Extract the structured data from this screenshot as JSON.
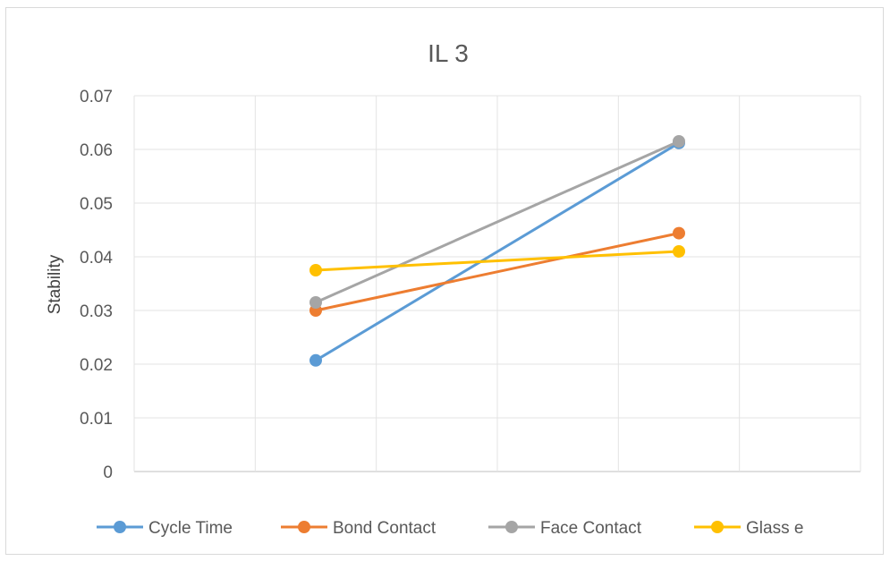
{
  "chart_data": {
    "type": "line",
    "title": "IL 3",
    "xlabel": "",
    "ylabel": "Stability",
    "ylim": [
      0,
      0.07
    ],
    "y_ticks": [
      "0",
      "0.01",
      "0.02",
      "0.03",
      "0.04",
      "0.05",
      "0.06",
      "0.07"
    ],
    "x_categories": 2,
    "grid": true,
    "legend_position": "bottom",
    "series": [
      {
        "name": "Cycle Time",
        "color": "#5b9bd5",
        "values": [
          0.0207,
          0.0612
        ]
      },
      {
        "name": "Bond Contact",
        "color": "#ed7d31",
        "values": [
          0.03,
          0.0444
        ]
      },
      {
        "name": "Face Contact",
        "color": "#a5a5a5",
        "values": [
          0.0315,
          0.0615
        ]
      },
      {
        "name": "Glass e",
        "color": "#ffc000",
        "values": [
          0.0375,
          0.041
        ]
      }
    ]
  }
}
